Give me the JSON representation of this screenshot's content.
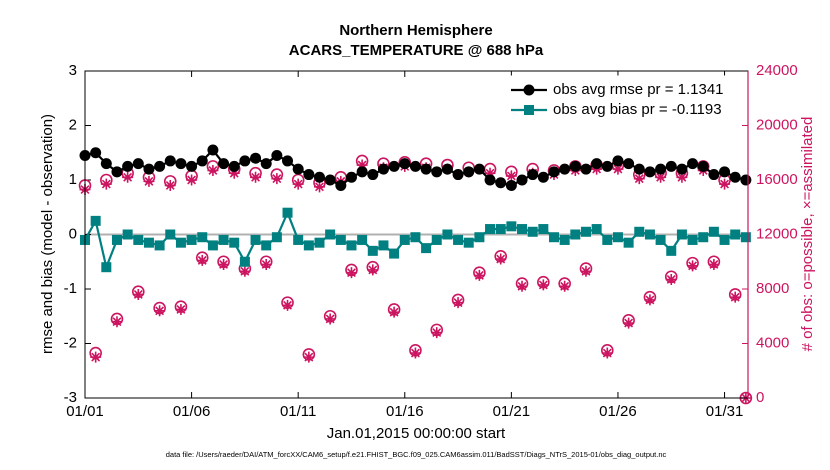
{
  "chart_data": {
    "type": "line",
    "title": [
      "Northern Hemisphere",
      "ACARS_TEMPERATURE @ 688 hPa"
    ],
    "x_label": "Jan.01,2015 00:00:00 start",
    "y_label": "rmse and bias (model - observation)",
    "y2_label": "# of obs: o=possible, ×=assimilated",
    "footnote": "data file: /Users/raeder/DAI/ATM_forcXX/CAM6_setup/f.e21.FHIST_BGC.f09_025.CAM6assim.011/BadSST/Diags_NTrS_2015-01/obs_diag_output.nc",
    "x": [
      1,
      1.5,
      2,
      2.5,
      3,
      3.5,
      4,
      4.5,
      5,
      5.5,
      6,
      6.5,
      7,
      7.5,
      8,
      8.5,
      9,
      9.5,
      10,
      10.5,
      11,
      11.5,
      12,
      12.5,
      13,
      13.5,
      14,
      14.5,
      15,
      15.5,
      16,
      16.5,
      17,
      17.5,
      18,
      18.5,
      19,
      19.5,
      20,
      20.5,
      21,
      21.5,
      22,
      22.5,
      23,
      23.5,
      24,
      24.5,
      25,
      25.5,
      26,
      26.5,
      27,
      27.5,
      28,
      28.5,
      29,
      29.5,
      30,
      30.5,
      31,
      31.5,
      32
    ],
    "xlim": [
      1,
      32.1
    ],
    "xticks": [
      {
        "value": 1,
        "label": "01/01"
      },
      {
        "value": 6,
        "label": "01/06"
      },
      {
        "value": 11,
        "label": "01/11"
      },
      {
        "value": 16,
        "label": "01/16"
      },
      {
        "value": 21,
        "label": "01/21"
      },
      {
        "value": 26,
        "label": "01/26"
      },
      {
        "value": 31,
        "label": "01/31"
      }
    ],
    "ylim": [
      -3,
      3
    ],
    "yticks": [
      -3,
      -2,
      -1,
      0,
      1,
      2,
      3
    ],
    "y2lim": [
      0,
      24000
    ],
    "y2ticks": [
      0,
      4000,
      8000,
      12000,
      16000,
      20000,
      24000
    ],
    "y2color": "#cc1560",
    "legend": "upper right",
    "series": [
      {
        "name": "obs avg rmse pr = 1.1341",
        "color": "#000000",
        "marker": "circle",
        "line": true,
        "values": [
          1.45,
          1.5,
          1.3,
          1.15,
          1.25,
          1.3,
          1.2,
          1.25,
          1.35,
          1.3,
          1.25,
          1.35,
          1.55,
          1.3,
          1.25,
          1.35,
          1.4,
          1.3,
          1.45,
          1.35,
          1.2,
          1.1,
          1.05,
          1.0,
          0.9,
          1.05,
          1.15,
          1.1,
          1.2,
          1.25,
          1.3,
          1.25,
          1.2,
          1.15,
          1.2,
          1.1,
          1.15,
          1.2,
          1.0,
          0.95,
          0.9,
          1.0,
          1.1,
          1.05,
          1.15,
          1.2,
          1.25,
          1.2,
          1.3,
          1.25,
          1.35,
          1.3,
          1.2,
          1.15,
          1.2,
          1.25,
          1.2,
          1.3,
          1.25,
          1.1,
          1.15,
          1.05,
          1.0
        ]
      },
      {
        "name": "obs avg bias pr = -0.1193",
        "color": "#008080",
        "marker": "square",
        "line": true,
        "values": [
          -0.1,
          0.25,
          -0.6,
          -0.1,
          0.0,
          -0.1,
          -0.15,
          -0.2,
          0.0,
          -0.15,
          -0.1,
          -0.05,
          -0.2,
          -0.1,
          -0.15,
          -0.5,
          -0.1,
          -0.2,
          -0.05,
          0.4,
          -0.1,
          -0.2,
          -0.15,
          0.0,
          -0.1,
          -0.2,
          -0.1,
          -0.3,
          -0.2,
          -0.35,
          -0.1,
          -0.05,
          -0.25,
          -0.1,
          0.0,
          -0.1,
          -0.15,
          -0.05,
          0.1,
          0.1,
          0.15,
          0.1,
          0.05,
          0.1,
          -0.05,
          -0.1,
          0.0,
          0.05,
          0.1,
          -0.1,
          -0.05,
          -0.15,
          0.05,
          0.0,
          -0.1,
          -0.3,
          0.0,
          -0.1,
          -0.05,
          0.05,
          -0.1,
          0.0,
          -0.05
        ]
      },
      {
        "color": "#cc1560",
        "marker": "open-circle",
        "line": false,
        "axis": "y2",
        "values": [
          15600,
          3300,
          16000,
          5800,
          16500,
          7800,
          16200,
          6600,
          15900,
          6700,
          16300,
          10300,
          17000,
          10000,
          16800,
          9500,
          16500,
          10000,
          16400,
          7000,
          16000,
          3200,
          15800,
          6000,
          16200,
          9400,
          17400,
          9600,
          17200,
          6500,
          17300,
          3500,
          17200,
          5000,
          17100,
          7200,
          16900,
          9200,
          16800,
          10400,
          16600,
          8400,
          16800,
          8500,
          16700,
          8400,
          17000,
          9500,
          17100,
          3500,
          17100,
          5700,
          16400,
          7400,
          16500,
          8900,
          16500,
          9900,
          17000,
          10000,
          16000,
          7600,
          0
        ]
      },
      {
        "color": "#cc1560",
        "marker": "asterisk",
        "line": false,
        "axis": "y2",
        "values": [
          15300,
          3000,
          15700,
          5600,
          16200,
          7600,
          15900,
          6400,
          15600,
          6500,
          16000,
          10100,
          16700,
          9800,
          16500,
          9300,
          16200,
          9800,
          16100,
          6800,
          15700,
          3000,
          15500,
          5800,
          15900,
          9200,
          17100,
          9400,
          16900,
          6300,
          17000,
          3300,
          16900,
          4800,
          16800,
          7000,
          16600,
          9000,
          16500,
          10200,
          16300,
          8200,
          16500,
          8300,
          16400,
          8200,
          16700,
          9300,
          16800,
          3300,
          16800,
          5500,
          16100,
          7200,
          16200,
          8700,
          16200,
          9700,
          16700,
          9800,
          15700,
          7400,
          0
        ]
      }
    ]
  }
}
